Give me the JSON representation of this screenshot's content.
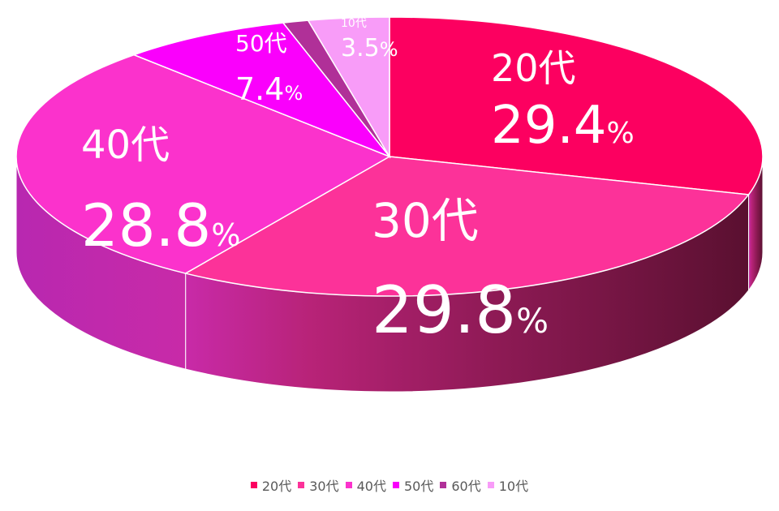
{
  "chart_data": {
    "type": "pie",
    "style": "3d",
    "title": "",
    "percent_unit": "%",
    "slices": [
      {
        "name": "20代",
        "value": 29.4,
        "label": "29.4",
        "color": "#fc0060"
      },
      {
        "name": "30代",
        "value": 29.8,
        "label": "29.8",
        "color": "#fc3299"
      },
      {
        "name": "40代",
        "value": 28.8,
        "label": "28.8",
        "color": "#fb32cc"
      },
      {
        "name": "50代",
        "value": 7.4,
        "label": "7.4",
        "color": "#fa00fc"
      },
      {
        "name": "60代",
        "value": 1.1,
        "label": "",
        "color": "#b03098"
      },
      {
        "name": "10代",
        "value": 3.5,
        "label": "3.5",
        "color": "#f89cf8"
      }
    ],
    "legend": {
      "position": "bottom"
    }
  }
}
